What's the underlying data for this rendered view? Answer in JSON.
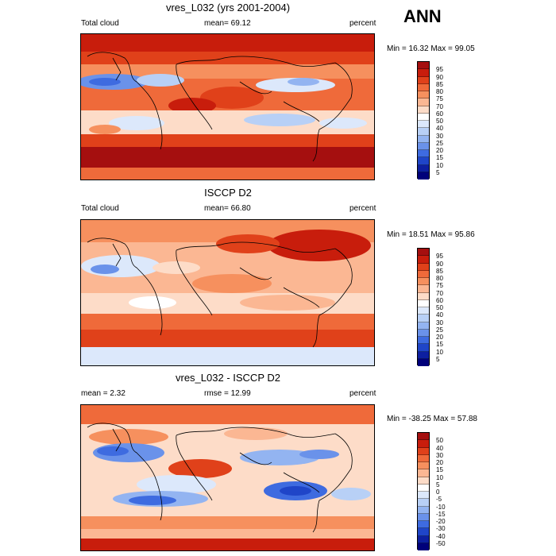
{
  "season": "ANN",
  "panels": [
    {
      "title": "vres_L032 (yrs 2001-2004)",
      "left_label": "Total cloud",
      "center_label": "mean=  69.12",
      "right_label": "percent",
      "minmax": "Min =  16.32 Max =  99.05",
      "colorbar_levels": [
        "95",
        "90",
        "85",
        "80",
        "75",
        "70",
        "60",
        "50",
        "40",
        "30",
        "25",
        "20",
        "15",
        "10",
        "5"
      ],
      "colorbar_colors": [
        "#a50f0f",
        "#c81d0c",
        "#e0411a",
        "#ef6a3a",
        "#f6905e",
        "#fbb793",
        "#fddcc8",
        "#ffffff",
        "#dce8fb",
        "#b8d0f6",
        "#93b4f1",
        "#6a92ea",
        "#3e6be0",
        "#1f45c8",
        "#0d1fa0",
        "#00007a"
      ],
      "field_mean": 69.12,
      "field_min": 16.32,
      "field_max": 99.05
    },
    {
      "title": "ISCCP D2",
      "left_label": "Total cloud",
      "center_label": "mean=  66.80",
      "right_label": "percent",
      "minmax": "Min =  18.51 Max =  95.86",
      "colorbar_levels": [
        "95",
        "90",
        "85",
        "80",
        "75",
        "70",
        "60",
        "50",
        "40",
        "30",
        "25",
        "20",
        "15",
        "10",
        "5"
      ],
      "colorbar_colors": [
        "#a50f0f",
        "#c81d0c",
        "#e0411a",
        "#ef6a3a",
        "#f6905e",
        "#fbb793",
        "#fddcc8",
        "#ffffff",
        "#dce8fb",
        "#b8d0f6",
        "#93b4f1",
        "#6a92ea",
        "#3e6be0",
        "#1f45c8",
        "#0d1fa0",
        "#00007a"
      ],
      "field_mean": 66.8,
      "field_min": 18.51,
      "field_max": 95.86
    },
    {
      "title": "vres_L032 - ISCCP D2",
      "left_label": "mean =   2.32",
      "center_label": "rmse =  12.99",
      "right_label": "percent",
      "minmax": "Min = -38.25 Max =  57.88",
      "colorbar_levels": [
        "50",
        "40",
        "30",
        "20",
        "15",
        "10",
        "5",
        "0",
        "-5",
        "-10",
        "-15",
        "-20",
        "-30",
        "-40",
        "-50"
      ],
      "colorbar_colors": [
        "#a50f0f",
        "#c81d0c",
        "#e0411a",
        "#ef6a3a",
        "#f6905e",
        "#fbb793",
        "#fddcc8",
        "#ffffff",
        "#dce8fb",
        "#b8d0f6",
        "#93b4f1",
        "#6a92ea",
        "#3e6be0",
        "#1f45c8",
        "#0d1fa0",
        "#00007a"
      ],
      "field_mean": 2.32,
      "field_rmse": 12.99,
      "field_min": -38.25,
      "field_max": 57.88
    }
  ]
}
